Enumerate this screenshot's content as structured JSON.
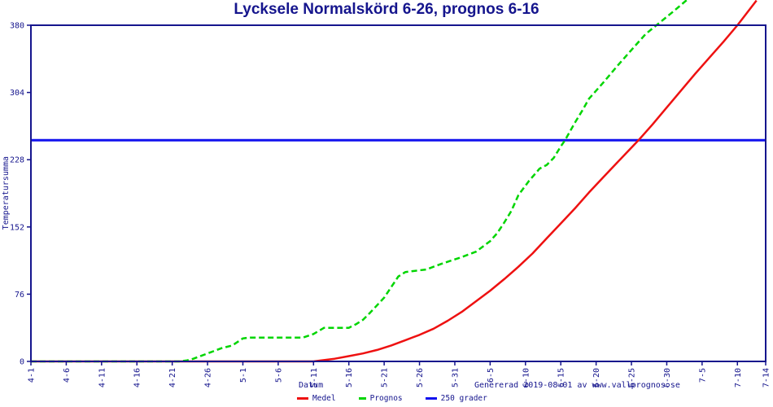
{
  "title": "Lycksele Normalskörd 6-26, prognos 6-16",
  "footer": "Genererad 2019-08-01 av www.vallprognos.se",
  "colors": {
    "navy": "#15158d",
    "red": "#ee1111",
    "green": "#00d500",
    "blue": "#1111ee",
    "background": "#ffffff"
  },
  "legend": {
    "items": [
      {
        "label": "Medel",
        "color": "#ee1111",
        "style": "solid"
      },
      {
        "label": "Prognos",
        "color": "#00d500",
        "style": "dashed"
      },
      {
        "label": "250 grader",
        "color": "#1111ee",
        "style": "solid"
      }
    ]
  },
  "chart_data": {
    "type": "line",
    "title": "Lycksele Normalskörd 6-26, prognos 6-16",
    "xlabel": "Datum",
    "ylabel": "Temperatursumma",
    "x_unit": "days after 4-1",
    "xlim": [
      0,
      104
    ],
    "ylim": [
      0,
      380
    ],
    "grid": false,
    "legend_position": "bottom-center",
    "y_ticks": [
      0,
      76,
      152,
      228,
      304,
      380
    ],
    "x_ticks": [
      {
        "label": "4-1",
        "day": 0
      },
      {
        "label": "4-6",
        "day": 5
      },
      {
        "label": "4-11",
        "day": 10
      },
      {
        "label": "4-16",
        "day": 15
      },
      {
        "label": "4-21",
        "day": 20
      },
      {
        "label": "4-26",
        "day": 25
      },
      {
        "label": "5-1",
        "day": 30
      },
      {
        "label": "5-6",
        "day": 35
      },
      {
        "label": "5-11",
        "day": 40
      },
      {
        "label": "5-16",
        "day": 45
      },
      {
        "label": "5-21",
        "day": 50
      },
      {
        "label": "5-26",
        "day": 55
      },
      {
        "label": "5-31",
        "day": 60
      },
      {
        "label": "6-5",
        "day": 65
      },
      {
        "label": "6-10",
        "day": 70
      },
      {
        "label": "6-15",
        "day": 75
      },
      {
        "label": "6-20",
        "day": 80
      },
      {
        "label": "6-25",
        "day": 85
      },
      {
        "label": "6-30",
        "day": 90
      },
      {
        "label": "7-5",
        "day": 95
      },
      {
        "label": "7-10",
        "day": 100
      },
      {
        "label": "7-14",
        "day": 104
      }
    ],
    "series": [
      {
        "name": "250 grader",
        "color": "#1111ee",
        "style": "solid",
        "width": 3,
        "points": [
          [
            0,
            250
          ],
          [
            104,
            250
          ]
        ]
      },
      {
        "name": "Medel",
        "color": "#ee1111",
        "style": "solid",
        "width": 2.5,
        "points": [
          [
            0,
            0
          ],
          [
            40,
            0
          ],
          [
            41,
            1
          ],
          [
            43,
            3
          ],
          [
            45,
            6
          ],
          [
            47,
            9
          ],
          [
            49,
            13
          ],
          [
            51,
            18
          ],
          [
            53,
            24
          ],
          [
            55,
            30
          ],
          [
            57,
            37
          ],
          [
            59,
            46
          ],
          [
            61,
            56
          ],
          [
            63,
            68
          ],
          [
            65,
            80
          ],
          [
            67,
            93
          ],
          [
            69,
            107
          ],
          [
            71,
            122
          ],
          [
            73,
            139
          ],
          [
            75,
            156
          ],
          [
            77,
            173
          ],
          [
            79,
            191
          ],
          [
            81,
            208
          ],
          [
            83,
            225
          ],
          [
            86,
            250
          ],
          [
            88,
            268
          ],
          [
            90,
            287
          ],
          [
            92,
            306
          ],
          [
            94,
            325
          ],
          [
            96,
            343
          ],
          [
            98,
            361
          ],
          [
            100,
            380
          ],
          [
            102.7,
            408
          ]
        ]
      },
      {
        "name": "Prognos",
        "color": "#00d500",
        "style": "dashed",
        "width": 2.5,
        "points": [
          [
            0,
            0
          ],
          [
            21,
            0
          ],
          [
            22,
            1
          ],
          [
            23,
            3
          ],
          [
            25,
            9
          ],
          [
            27,
            15
          ],
          [
            28.5,
            18
          ],
          [
            30,
            26
          ],
          [
            31,
            27
          ],
          [
            38.5,
            27
          ],
          [
            40,
            31
          ],
          [
            41.5,
            38
          ],
          [
            45,
            38
          ],
          [
            46,
            42
          ],
          [
            47,
            47
          ],
          [
            48,
            55
          ],
          [
            50,
            72
          ],
          [
            52,
            96
          ],
          [
            53,
            101
          ],
          [
            56,
            104
          ],
          [
            58,
            110
          ],
          [
            61,
            118
          ],
          [
            63,
            124
          ],
          [
            65,
            136
          ],
          [
            66,
            145
          ],
          [
            67,
            157
          ],
          [
            68,
            170
          ],
          [
            69,
            188
          ],
          [
            70.5,
            204
          ],
          [
            72,
            218
          ],
          [
            73,
            222
          ],
          [
            74,
            230
          ],
          [
            75,
            243
          ],
          [
            75.6,
            250
          ],
          [
            77,
            270
          ],
          [
            78,
            283
          ],
          [
            79,
            297
          ],
          [
            81,
            315
          ],
          [
            83,
            334
          ],
          [
            85,
            352
          ],
          [
            87,
            370
          ],
          [
            89,
            383
          ],
          [
            91,
            396
          ],
          [
            93.5,
            413
          ]
        ]
      }
    ]
  }
}
